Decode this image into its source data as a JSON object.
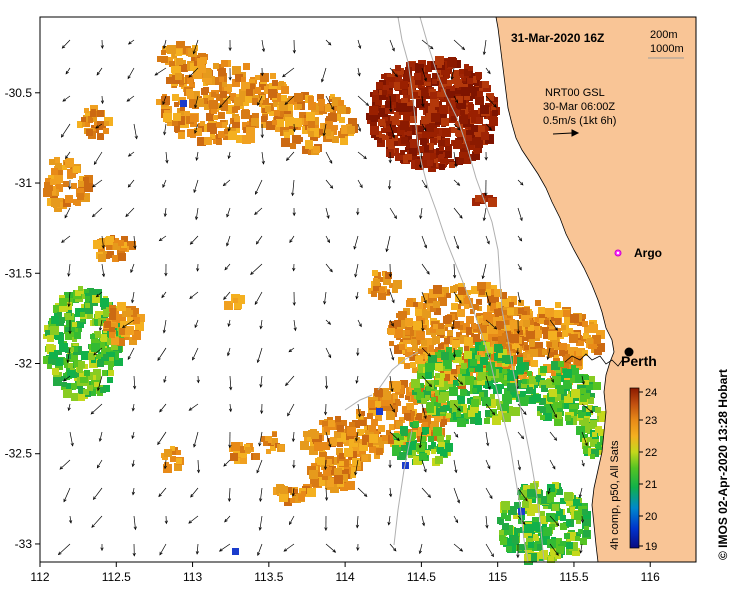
{
  "map": {
    "title": "31-Mar-2020 16Z",
    "contours": [
      "200m",
      "1000m"
    ],
    "current_note": {
      "source": "NRT00 GSL",
      "time": "30-Mar 06:00Z",
      "scale": "0.5m/s (1kt 6h)"
    },
    "markers": [
      {
        "name": "Argo",
        "lon": 115.87,
        "lat": -31.46,
        "symbol": "argo-marker"
      },
      {
        "name": "Perth",
        "lon": 115.86,
        "lat": -31.95,
        "symbol": "city-dot"
      }
    ],
    "lon_range": [
      112,
      116.3
    ],
    "lat_range": [
      -33.1,
      -30.08
    ],
    "x_ticks": [
      "112",
      "112.5",
      "113",
      "113.5",
      "114",
      "114.5",
      "115",
      "115.5",
      "116"
    ],
    "y_ticks": [
      "-30.5",
      "-31",
      "-31.5",
      "-32",
      "-32.5",
      "-33"
    ],
    "colorbar": {
      "label": "4h comp, p50, All Sats",
      "ticks": [
        "24",
        "23",
        "22",
        "21",
        "20",
        "19"
      ],
      "min": 19,
      "max": 24
    },
    "credit": "© IMOS 02-Apr-2020 13:28 Hobart",
    "colors": {
      "land": "#f9c596",
      "warm": "#8b1a00",
      "cool": "#1a9a3c"
    }
  }
}
